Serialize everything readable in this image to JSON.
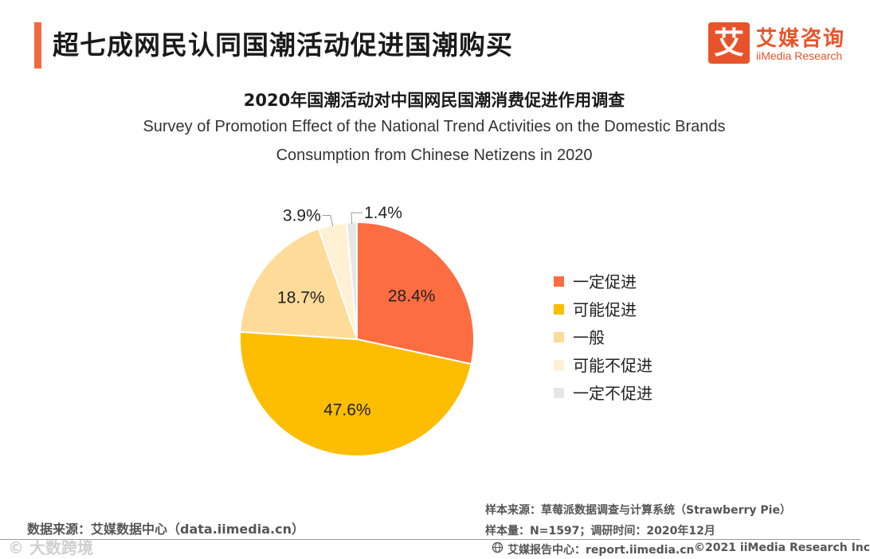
{
  "header": {
    "title": "超七成网民认同国潮活动促进国潮购买",
    "logo_mark": "艾",
    "logo_cn": "艾媒咨询",
    "logo_en": "iiMedia Research"
  },
  "chart_data": {
    "type": "pie",
    "title": "2020年国潮活动对中国网民国潮消费促进作用调查",
    "subtitle_line1": "Survey of Promotion Effect of the National Trend Activities on the Domestic Brands",
    "subtitle_line2": "Consumption from Chinese Netizens in 2020",
    "legend_position": "right",
    "slices": [
      {
        "name": "一定促进",
        "value": 28.4,
        "label": "28.4%",
        "color": "#fd6d42"
      },
      {
        "name": "可能促进",
        "value": 47.6,
        "label": "47.6%",
        "color": "#fdbd00"
      },
      {
        "name": "一般",
        "value": 18.7,
        "label": "18.7%",
        "color": "#fedb99"
      },
      {
        "name": "可能不促进",
        "value": 3.9,
        "label": "3.9%",
        "color": "#fef0d3"
      },
      {
        "name": "一定不促进",
        "value": 1.4,
        "label": "1.4%",
        "color": "#e6e6e6"
      }
    ]
  },
  "footer": {
    "source": "数据来源：艾媒数据中心（data.iimedia.cn）",
    "sample_source": "样本来源：草莓派数据调查与计算系统（Strawberry Pie）",
    "sample_size": "样本量：N=1597；调研时间：2020年12月",
    "report": "艾媒报告中心：report.iimedia.cn",
    "copyright": "©2021  iiMedia Research  Inc",
    "watermark": "©   大数跨境"
  }
}
